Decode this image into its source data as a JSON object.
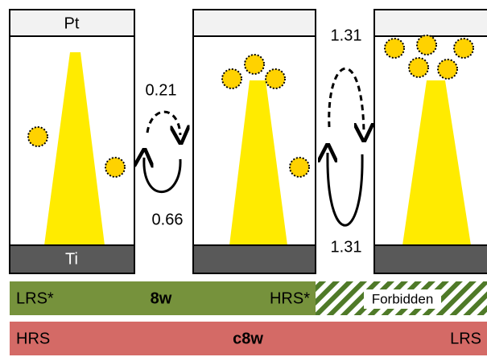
{
  "electrodes": {
    "top": "Pt",
    "bottom": "Ti"
  },
  "transitions": [
    {
      "up": "0.21",
      "down": "0.66"
    },
    {
      "up": "1.31",
      "down": "1.31"
    }
  ],
  "bars": [
    {
      "left": "LRS*",
      "center": "8w",
      "right": "HRS*",
      "forbidden": "Forbidden"
    },
    {
      "left": "HRS",
      "center": "c8w",
      "right": "LRS"
    }
  ]
}
